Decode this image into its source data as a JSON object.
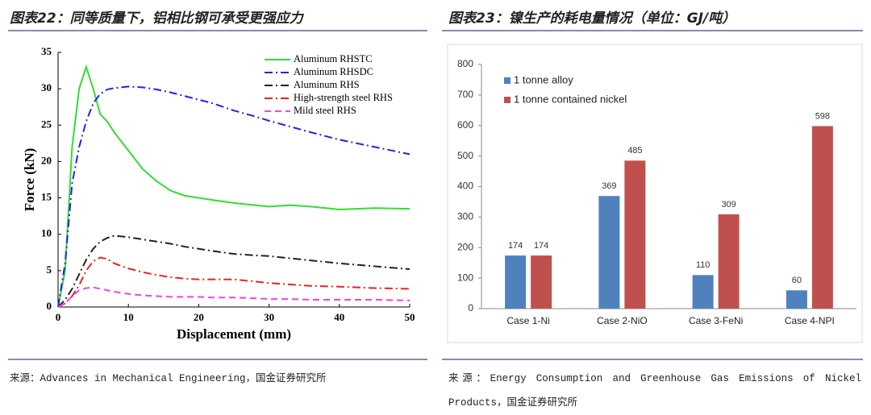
{
  "chart_data": [
    {
      "type": "line",
      "title": "图表22：同等质量下，铝相比钢可承受更强应力",
      "x_label": "Displacement (mm)",
      "y_label": "Force (kN)",
      "x": [
        0,
        1,
        2,
        3,
        4,
        5,
        6,
        7,
        8,
        10,
        12,
        14,
        16,
        18,
        20,
        22,
        25,
        28,
        30,
        33,
        36,
        40,
        45,
        50
      ],
      "series": [
        {
          "name": "Aluminum RHSTC",
          "color": "#33dd33",
          "line_style": "solid",
          "values": [
            0,
            5,
            22,
            30,
            33,
            30,
            26.5,
            25.5,
            24,
            21.5,
            19,
            17.3,
            16,
            15.3,
            15,
            14.7,
            14.3,
            14,
            13.8,
            14,
            13.8,
            13.4,
            13.6,
            13.5
          ]
        },
        {
          "name": "Aluminum RHSDC",
          "color": "#2222ee",
          "line_style": "dash-dot",
          "values": [
            0,
            6,
            17,
            22,
            25.5,
            28,
            29.3,
            29.9,
            30.1,
            30.3,
            30.2,
            29.9,
            29.5,
            29,
            28.5,
            28,
            27,
            26.2,
            25.6,
            24.8,
            24,
            23,
            22,
            21
          ]
        },
        {
          "name": "Aluminum RHS",
          "color": "#222222",
          "line_style": "dash-dot",
          "values": [
            0,
            1,
            2.5,
            4.5,
            6.5,
            8,
            9,
            9.5,
            9.8,
            9.6,
            9.3,
            9,
            8.7,
            8.3,
            8,
            7.7,
            7.3,
            7.1,
            7,
            6.7,
            6.4,
            6,
            5.6,
            5.2
          ]
        },
        {
          "name": "High-strength steel RHS",
          "color": "#ee2222",
          "line_style": "dash-dot",
          "values": [
            0,
            0.5,
            1.5,
            3,
            5,
            6.3,
            6.8,
            6.6,
            6,
            5.3,
            4.8,
            4.4,
            4.1,
            3.9,
            3.8,
            3.8,
            3.8,
            3.5,
            3.3,
            3.1,
            2.9,
            2.8,
            2.6,
            2.5
          ]
        },
        {
          "name": "Mild steel RHS",
          "color": "#ee44ee",
          "line_style": "dashed",
          "values": [
            0,
            0.5,
            1.5,
            2.3,
            2.6,
            2.7,
            2.5,
            2.3,
            2.1,
            1.8,
            1.6,
            1.5,
            1.4,
            1.4,
            1.4,
            1.3,
            1.3,
            1.2,
            1.1,
            1.1,
            1.0,
            1.0,
            1.0,
            0.9
          ]
        }
      ],
      "xlim": [
        0,
        50
      ],
      "xticks": [
        0,
        10,
        20,
        30,
        40,
        50
      ],
      "ylim": [
        0,
        35
      ],
      "yticks": [
        0,
        5,
        10,
        15,
        20,
        25,
        30,
        35
      ],
      "legend": "upper right",
      "grid": false,
      "source": "来源：Advances in Mechanical Engineering，国金证券研究所"
    },
    {
      "type": "bar",
      "title": "图表23：镍生产的耗电量情况（单位：GJ/吨）",
      "categories": [
        "Case 1-Ni",
        "Case 2-NiO",
        "Case 3-FeNi",
        "Case 4-NPI"
      ],
      "series": [
        {
          "name": "1 tonne alloy",
          "color": "#4f81bd",
          "values": [
            174,
            369,
            110,
            60
          ]
        },
        {
          "name": "1 tonne contained nickel",
          "color": "#c0504d",
          "values": [
            174,
            485,
            309,
            598
          ]
        }
      ],
      "ylim": [
        0,
        800
      ],
      "yticks": [
        0,
        100,
        200,
        300,
        400,
        500,
        600,
        700,
        800
      ],
      "legend": "upper left",
      "grid": false,
      "source": "来源：Energy Consumption and Greenhouse Gas Emissions of Nickel Products，国金证券研究所"
    }
  ]
}
